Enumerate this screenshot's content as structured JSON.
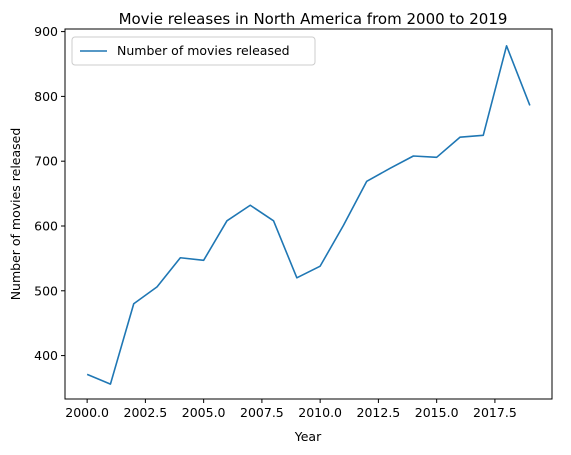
{
  "chart_data": {
    "type": "line",
    "title": "Movie releases in North America from 2000 to 2019",
    "xlabel": "Year",
    "ylabel": "Number of movies released",
    "xlim": [
      1999.05,
      2019.95
    ],
    "ylim": [
      333,
      904
    ],
    "xticks": [
      "2000.0",
      "2002.5",
      "2005.0",
      "2007.5",
      "2010.0",
      "2012.5",
      "2015.0",
      "2017.5"
    ],
    "xtick_values": [
      2000,
      2002.5,
      2005,
      2007.5,
      2010,
      2012.5,
      2015,
      2017.5
    ],
    "yticks": [
      "400",
      "500",
      "600",
      "700",
      "800",
      "900"
    ],
    "ytick_values": [
      400,
      500,
      600,
      700,
      800,
      900
    ],
    "grid": false,
    "legend_position": "top-left",
    "series": [
      {
        "name": "Number of movies released",
        "color": "#1f77b4",
        "x": [
          2000,
          2001,
          2002,
          2003,
          2004,
          2005,
          2006,
          2007,
          2008,
          2009,
          2010,
          2011,
          2012,
          2013,
          2014,
          2015,
          2016,
          2017,
          2018,
          2019
        ],
        "y": [
          371,
          356,
          480,
          506,
          551,
          547,
          608,
          632,
          608,
          520,
          538,
          601,
          669,
          689,
          708,
          706,
          737,
          740,
          878,
          786
        ]
      }
    ]
  }
}
